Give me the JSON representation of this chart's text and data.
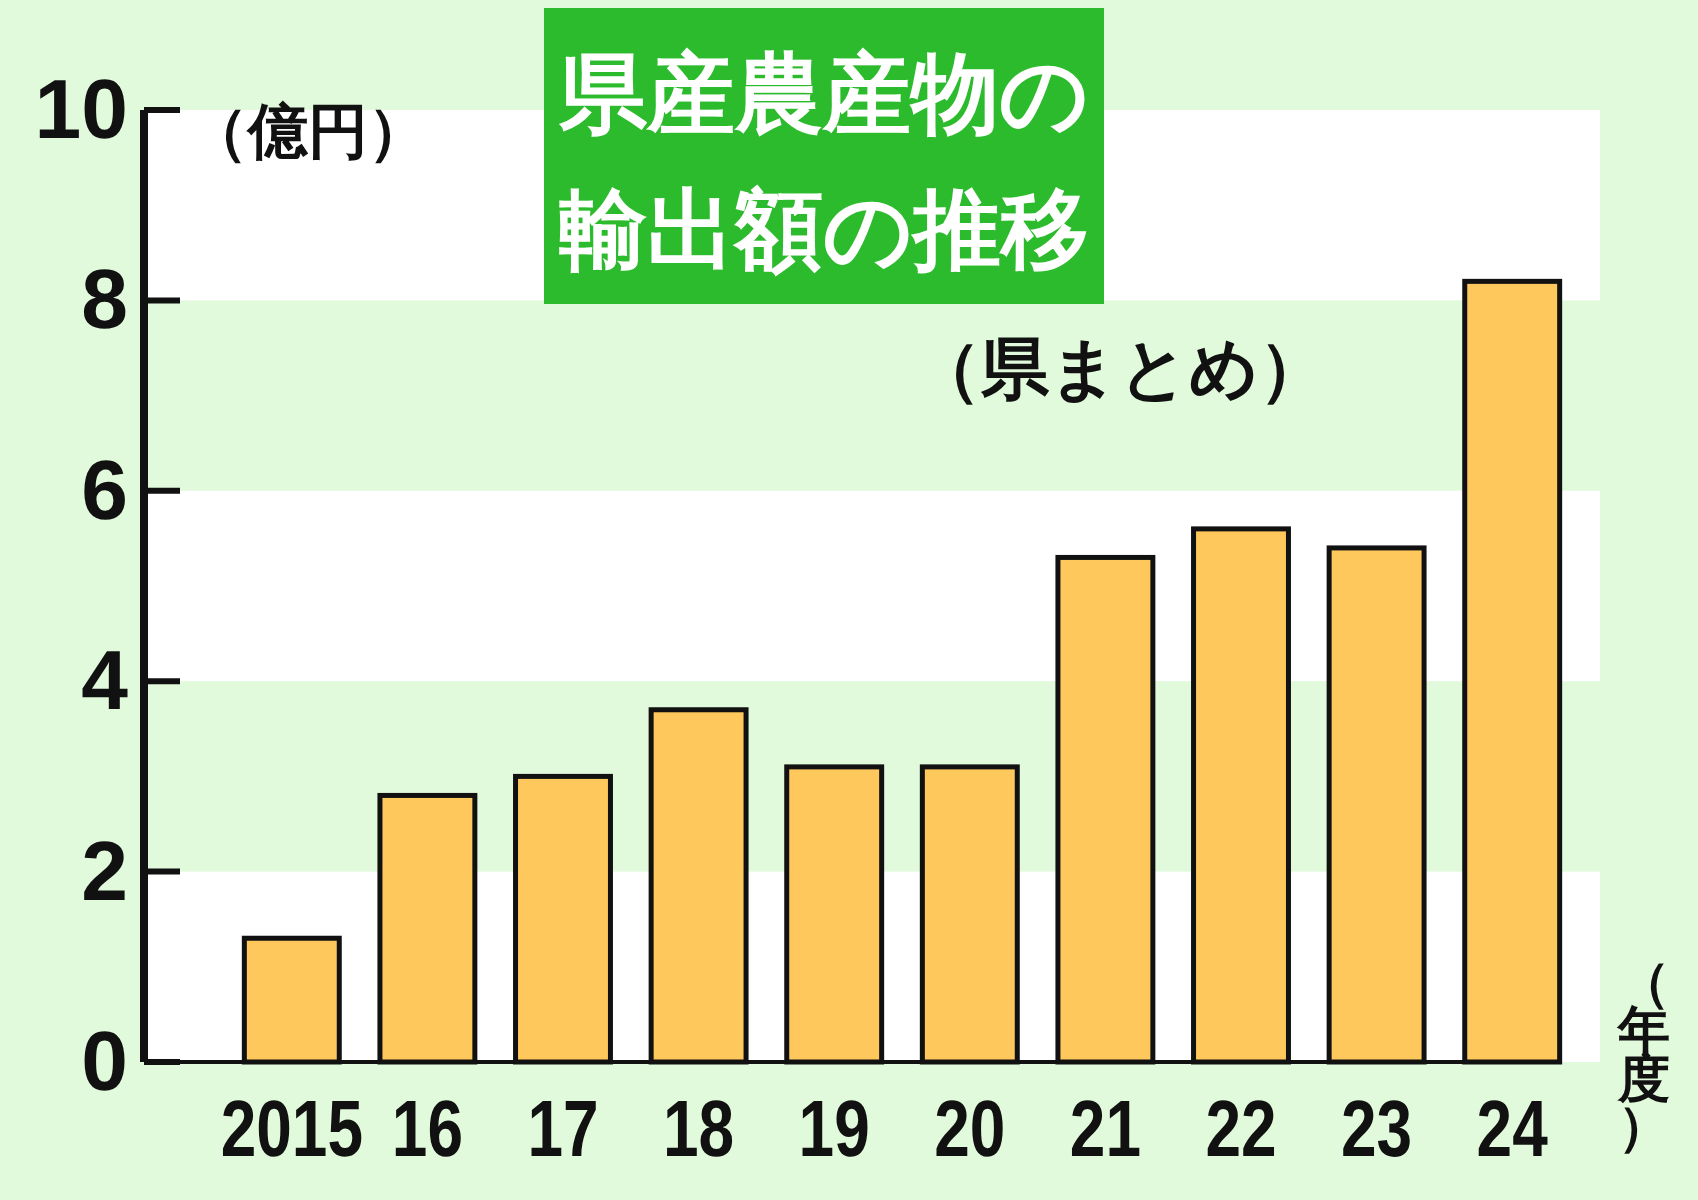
{
  "chart_data": {
    "type": "bar",
    "title": "県産農産物の輸出額の推移",
    "subtitle": "（県まとめ）",
    "ylabel": "（億円）",
    "xlabel": "（年度）",
    "categories": [
      "2015",
      "16",
      "17",
      "18",
      "19",
      "20",
      "21",
      "22",
      "23",
      "24"
    ],
    "values": [
      1.3,
      2.8,
      3.0,
      3.7,
      3.1,
      3.1,
      5.3,
      5.6,
      5.4,
      8.2
    ],
    "color": "#ffc85c",
    "ylim": [
      0,
      10
    ],
    "yticks": [
      0,
      2,
      4,
      6,
      8,
      10
    ],
    "bands": [
      {
        "axis": "y",
        "from": 0,
        "to": 2,
        "color": "#ffffff"
      },
      {
        "axis": "y",
        "from": 4,
        "to": 6,
        "color": "#ffffff"
      },
      {
        "axis": "y",
        "from": 8,
        "to": 10,
        "color": "#ffffff"
      }
    ]
  }
}
